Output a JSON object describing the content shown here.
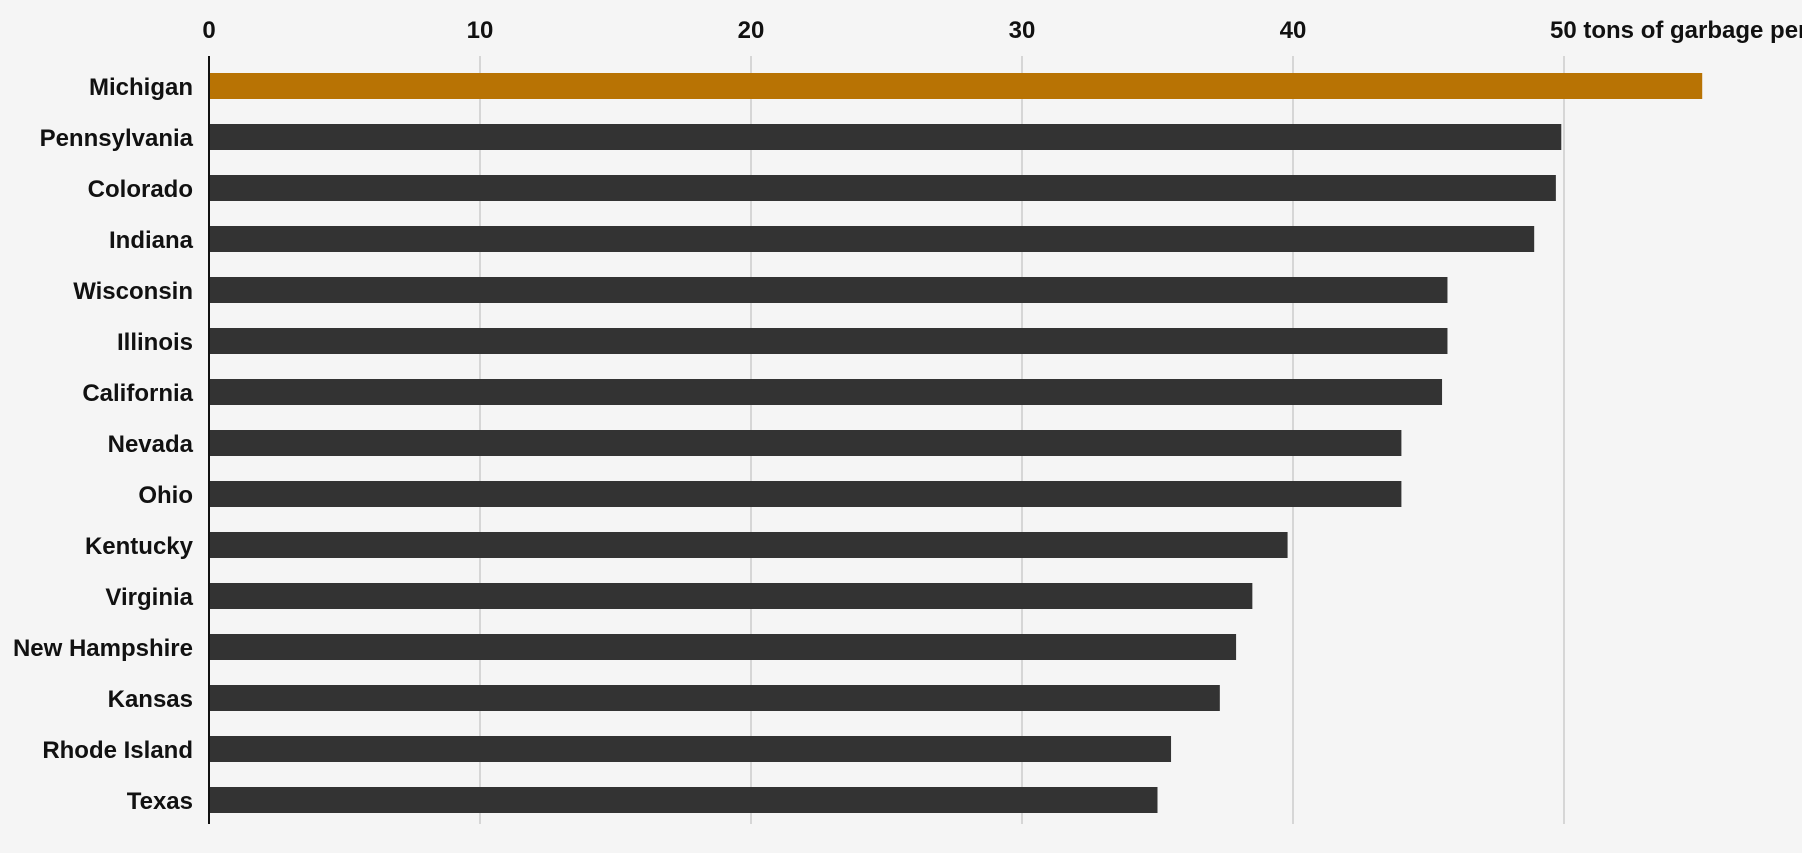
{
  "chart_data": {
    "type": "bar",
    "orientation": "horizontal",
    "title": "",
    "xlabel": "tons of garbage per capita",
    "ylabel": "",
    "xlim": [
      0,
      55
    ],
    "ticks": [
      0,
      10,
      20,
      30,
      40,
      50
    ],
    "grid": true,
    "categories": [
      "Michigan",
      "Pennsylvania",
      "Colorado",
      "Indiana",
      "Wisconsin",
      "Illinois",
      "California",
      "Nevada",
      "Ohio",
      "Kentucky",
      "Virginia",
      "New Hampshire",
      "Kansas",
      "Rhode Island",
      "Texas"
    ],
    "values": [
      55.1,
      49.9,
      49.7,
      48.9,
      45.7,
      45.7,
      45.5,
      44.0,
      44.0,
      39.8,
      38.5,
      37.9,
      37.3,
      35.5,
      35.0
    ],
    "colors": {
      "highlight": "#b87304",
      "bar": "#333333"
    },
    "highlight_category": "Michigan"
  }
}
